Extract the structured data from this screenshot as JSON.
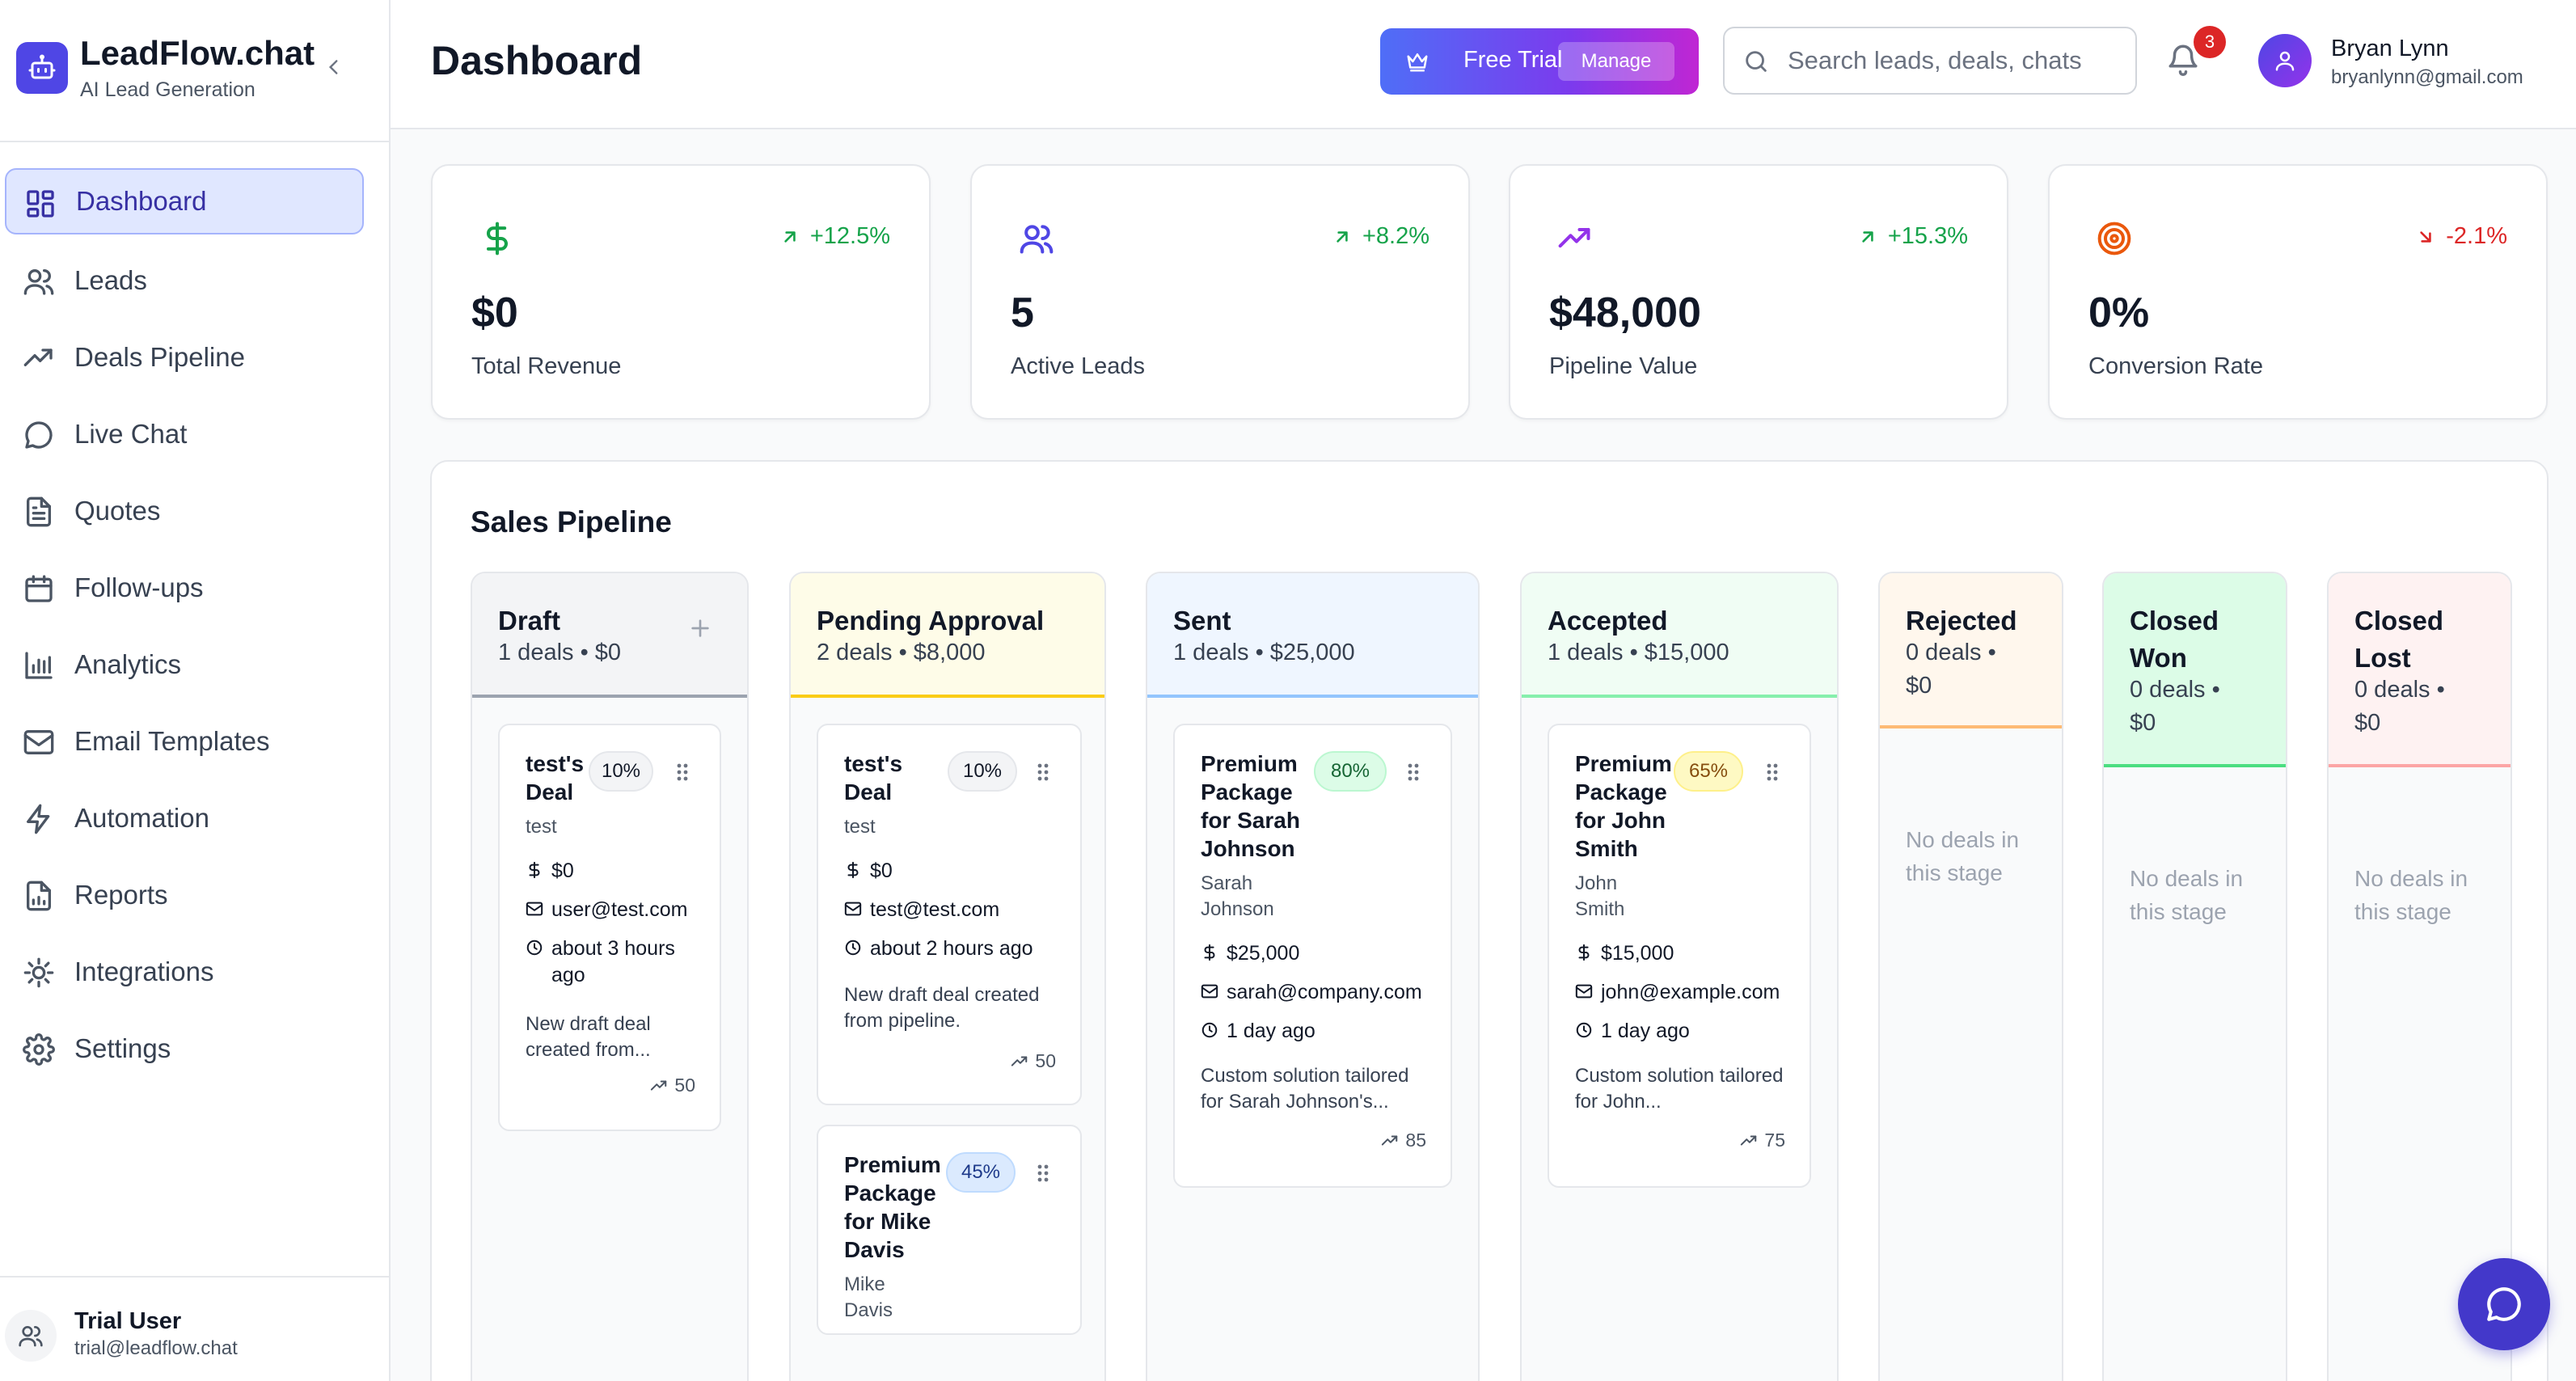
{
  "brand": {
    "name": "LeadFlow.chat",
    "subtitle": "AI Lead Generation"
  },
  "nav": [
    {
      "label": "Dashboard",
      "icon": "dashboard-icon",
      "active": true
    },
    {
      "label": "Leads",
      "icon": "users-icon"
    },
    {
      "label": "Deals Pipeline",
      "icon": "trending-up-icon"
    },
    {
      "label": "Live Chat",
      "icon": "chat-bubble-icon"
    },
    {
      "label": "Quotes",
      "icon": "document-icon"
    },
    {
      "label": "Follow-ups",
      "icon": "calendar-icon"
    },
    {
      "label": "Analytics",
      "icon": "bar-chart-icon"
    },
    {
      "label": "Email Templates",
      "icon": "mail-icon"
    },
    {
      "label": "Automation",
      "icon": "lightning-icon"
    },
    {
      "label": "Reports",
      "icon": "report-icon"
    },
    {
      "label": "Integrations",
      "icon": "cog-icon"
    },
    {
      "label": "Settings",
      "icon": "settings-icon"
    }
  ],
  "footer_user": {
    "name": "Trial User",
    "email": "trial@leadflow.chat"
  },
  "header": {
    "title": "Dashboard",
    "trial_label": "Free Trial",
    "manage_label": "Manage",
    "search_placeholder": "Search leads, deals, chats",
    "notification_count": "3",
    "user_name": "Bryan Lynn",
    "user_email": "bryanlynn@gmail.com"
  },
  "stats": [
    {
      "icon": "dollar-icon",
      "value": "$0",
      "label": "Total Revenue",
      "trend": "+12.5%",
      "direction": "up",
      "icon_color": "#16a34a"
    },
    {
      "icon": "users-icon",
      "value": "5",
      "label": "Active Leads",
      "trend": "+8.2%",
      "direction": "up",
      "icon_color": "#4f46e5"
    },
    {
      "icon": "trending-up-icon",
      "value": "$48,000",
      "label": "Pipeline Value",
      "trend": "+15.3%",
      "direction": "up",
      "icon_color": "#9333ea"
    },
    {
      "icon": "target-icon",
      "value": "0%",
      "label": "Conversion Rate",
      "trend": "-2.1%",
      "direction": "down",
      "icon_color": "#ea580c"
    }
  ],
  "colors": {
    "trend_up": "#16a34a",
    "trend_down": "#dc2626",
    "accent": "#4f46e5"
  },
  "pipeline": {
    "title": "Sales Pipeline",
    "empty_text": "No deals in this stage",
    "columns": [
      {
        "title": "Draft",
        "meta": "1 deals • $0",
        "bg": "#f3f4f6",
        "border": "#9ca3af",
        "cards": [
          {
            "title": "test's Deal",
            "pct": "10%",
            "pct_bg": "#f3f4f6",
            "pct_border": "#e5e7eb",
            "pct_color": "#111827",
            "contact": "test",
            "value": "$0",
            "email": "user@test.com",
            "time": "about 3 hours ago",
            "desc": "New draft deal created from...",
            "score": "50"
          }
        ]
      },
      {
        "title": "Pending Approval",
        "meta": "2 deals • $8,000",
        "bg": "#fefce8",
        "border": "#facc15",
        "cards": [
          {
            "title": "test's Deal",
            "pct": "10%",
            "pct_bg": "#f3f4f6",
            "pct_border": "#e5e7eb",
            "pct_color": "#111827",
            "contact": "test",
            "value": "$0",
            "email": "test@test.com",
            "time": "about 2 hours ago",
            "desc": "New draft deal created from pipeline.",
            "score": "50"
          },
          {
            "title": "Premium Package for Mike Davis",
            "pct": "45%",
            "pct_bg": "#dbeafe",
            "pct_border": "#bfdbfe",
            "pct_color": "#1e3a8a",
            "contact": "Mike Davis"
          }
        ]
      },
      {
        "title": "Sent",
        "meta": "1 deals • $25,000",
        "bg": "#eff6ff",
        "border": "#93c5fd",
        "cards": [
          {
            "title": "Premium Package for Sarah Johnson",
            "pct": "80%",
            "pct_bg": "#dcfce7",
            "pct_border": "#bbf7d0",
            "pct_color": "#166534",
            "contact": "Sarah Johnson",
            "value": "$25,000",
            "email": "sarah@company.com",
            "time": "1 day ago",
            "desc": "Custom solution tailored for Sarah Johnson's...",
            "score": "85"
          }
        ]
      },
      {
        "title": "Accepted",
        "meta": "1 deals • $15,000",
        "bg": "#f0fdf4",
        "border": "#86efac",
        "cards": [
          {
            "title": "Premium Package for John Smith",
            "pct": "65%",
            "pct_bg": "#fef9c3",
            "pct_border": "#fef08a",
            "pct_color": "#854d0e",
            "contact": "John Smith",
            "value": "$15,000",
            "email": "john@example.com",
            "time": "1 day ago",
            "desc": "Custom solution tailored for John...",
            "score": "75"
          }
        ]
      },
      {
        "title": "Rejected",
        "meta": "0 deals • $0",
        "bg": "#fff7ed",
        "border": "#fdba74",
        "cards": []
      },
      {
        "title": "Closed Won",
        "meta": "0 deals • $0",
        "bg": "#dcfce7",
        "border": "#4ade80",
        "cards": []
      },
      {
        "title": "Closed Lost",
        "meta": "0 deals • $0",
        "bg": "#fef2f2",
        "border": "#fca5a5",
        "cards": []
      }
    ]
  }
}
